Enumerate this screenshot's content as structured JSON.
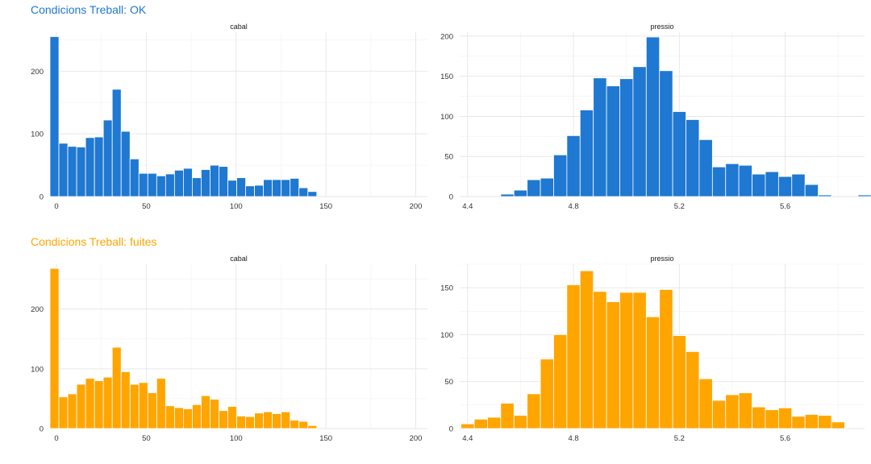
{
  "colors": {
    "ok": "#1f78d1",
    "leak": "#ffa500"
  },
  "sections": [
    {
      "title": "Condicions Treball: OK",
      "color_key": "ok"
    },
    {
      "title": "Condicions Treball: fuites",
      "color_key": "leak"
    }
  ],
  "chart_data": [
    {
      "type": "bar",
      "group": "Condicions Treball: OK",
      "title": "cabal",
      "bin_start": -3.6,
      "bin_width": 4.95,
      "xlim": [
        -3.6,
        206.5
      ],
      "xticks": [
        0,
        50,
        100,
        150,
        200
      ],
      "ylim": [
        0,
        262
      ],
      "yticks": [
        0,
        100,
        200
      ],
      "values": [
        255,
        85,
        80,
        79,
        94,
        95,
        122,
        171,
        104,
        60,
        37,
        37,
        33,
        36,
        42,
        45,
        30,
        43,
        50,
        48,
        26,
        30,
        17,
        18,
        27,
        27,
        27,
        29,
        14,
        8
      ]
    },
    {
      "type": "bar",
      "group": "Condicions Treball: OK",
      "title": "pressio",
      "bin_start": 4.525,
      "bin_width": 0.05,
      "xlim": [
        4.37,
        5.9
      ],
      "xticks": [
        4.4,
        4.8,
        5.2,
        5.6
      ],
      "ylim": [
        0,
        205
      ],
      "yticks": [
        0,
        50,
        100,
        150,
        200
      ],
      "values": [
        3,
        8,
        21,
        23,
        52,
        76,
        108,
        148,
        138,
        147,
        162,
        199,
        157,
        106,
        96,
        71,
        37,
        41,
        39,
        28,
        31,
        25,
        28,
        15,
        2,
        0,
        0,
        2
      ],
      "mark_count": 27
    },
    {
      "type": "bar",
      "group": "Condicions Treball: fuites",
      "title": "cabal",
      "bin_start": -3.6,
      "bin_width": 4.95,
      "xlim": [
        -3.6,
        206.5
      ],
      "xticks": [
        0,
        50,
        100,
        150,
        200
      ],
      "ylim": [
        0,
        275
      ],
      "yticks": [
        0,
        100,
        200
      ],
      "values": [
        268,
        53,
        58,
        74,
        84,
        80,
        86,
        136,
        95,
        74,
        77,
        60,
        84,
        38,
        35,
        33,
        40,
        55,
        49,
        30,
        37,
        21,
        20,
        26,
        28,
        25,
        28,
        14,
        12,
        5
      ]
    },
    {
      "type": "bar",
      "group": "Condicions Treball: fuites",
      "title": "pressio",
      "bin_start": 4.375,
      "bin_width": 0.05,
      "xlim": [
        4.37,
        5.9
      ],
      "xticks": [
        4.4,
        4.8,
        5.2,
        5.6
      ],
      "ylim": [
        0,
        175
      ],
      "yticks": [
        0,
        50,
        100,
        150
      ],
      "values": [
        5,
        10,
        12,
        27,
        14,
        37,
        74,
        100,
        153,
        168,
        146,
        135,
        145,
        145,
        119,
        148,
        99,
        82,
        53,
        30,
        36,
        38,
        23,
        20,
        22,
        13,
        15,
        14,
        7,
        0,
        0,
        2
      ],
      "mark_count": 31
    }
  ]
}
